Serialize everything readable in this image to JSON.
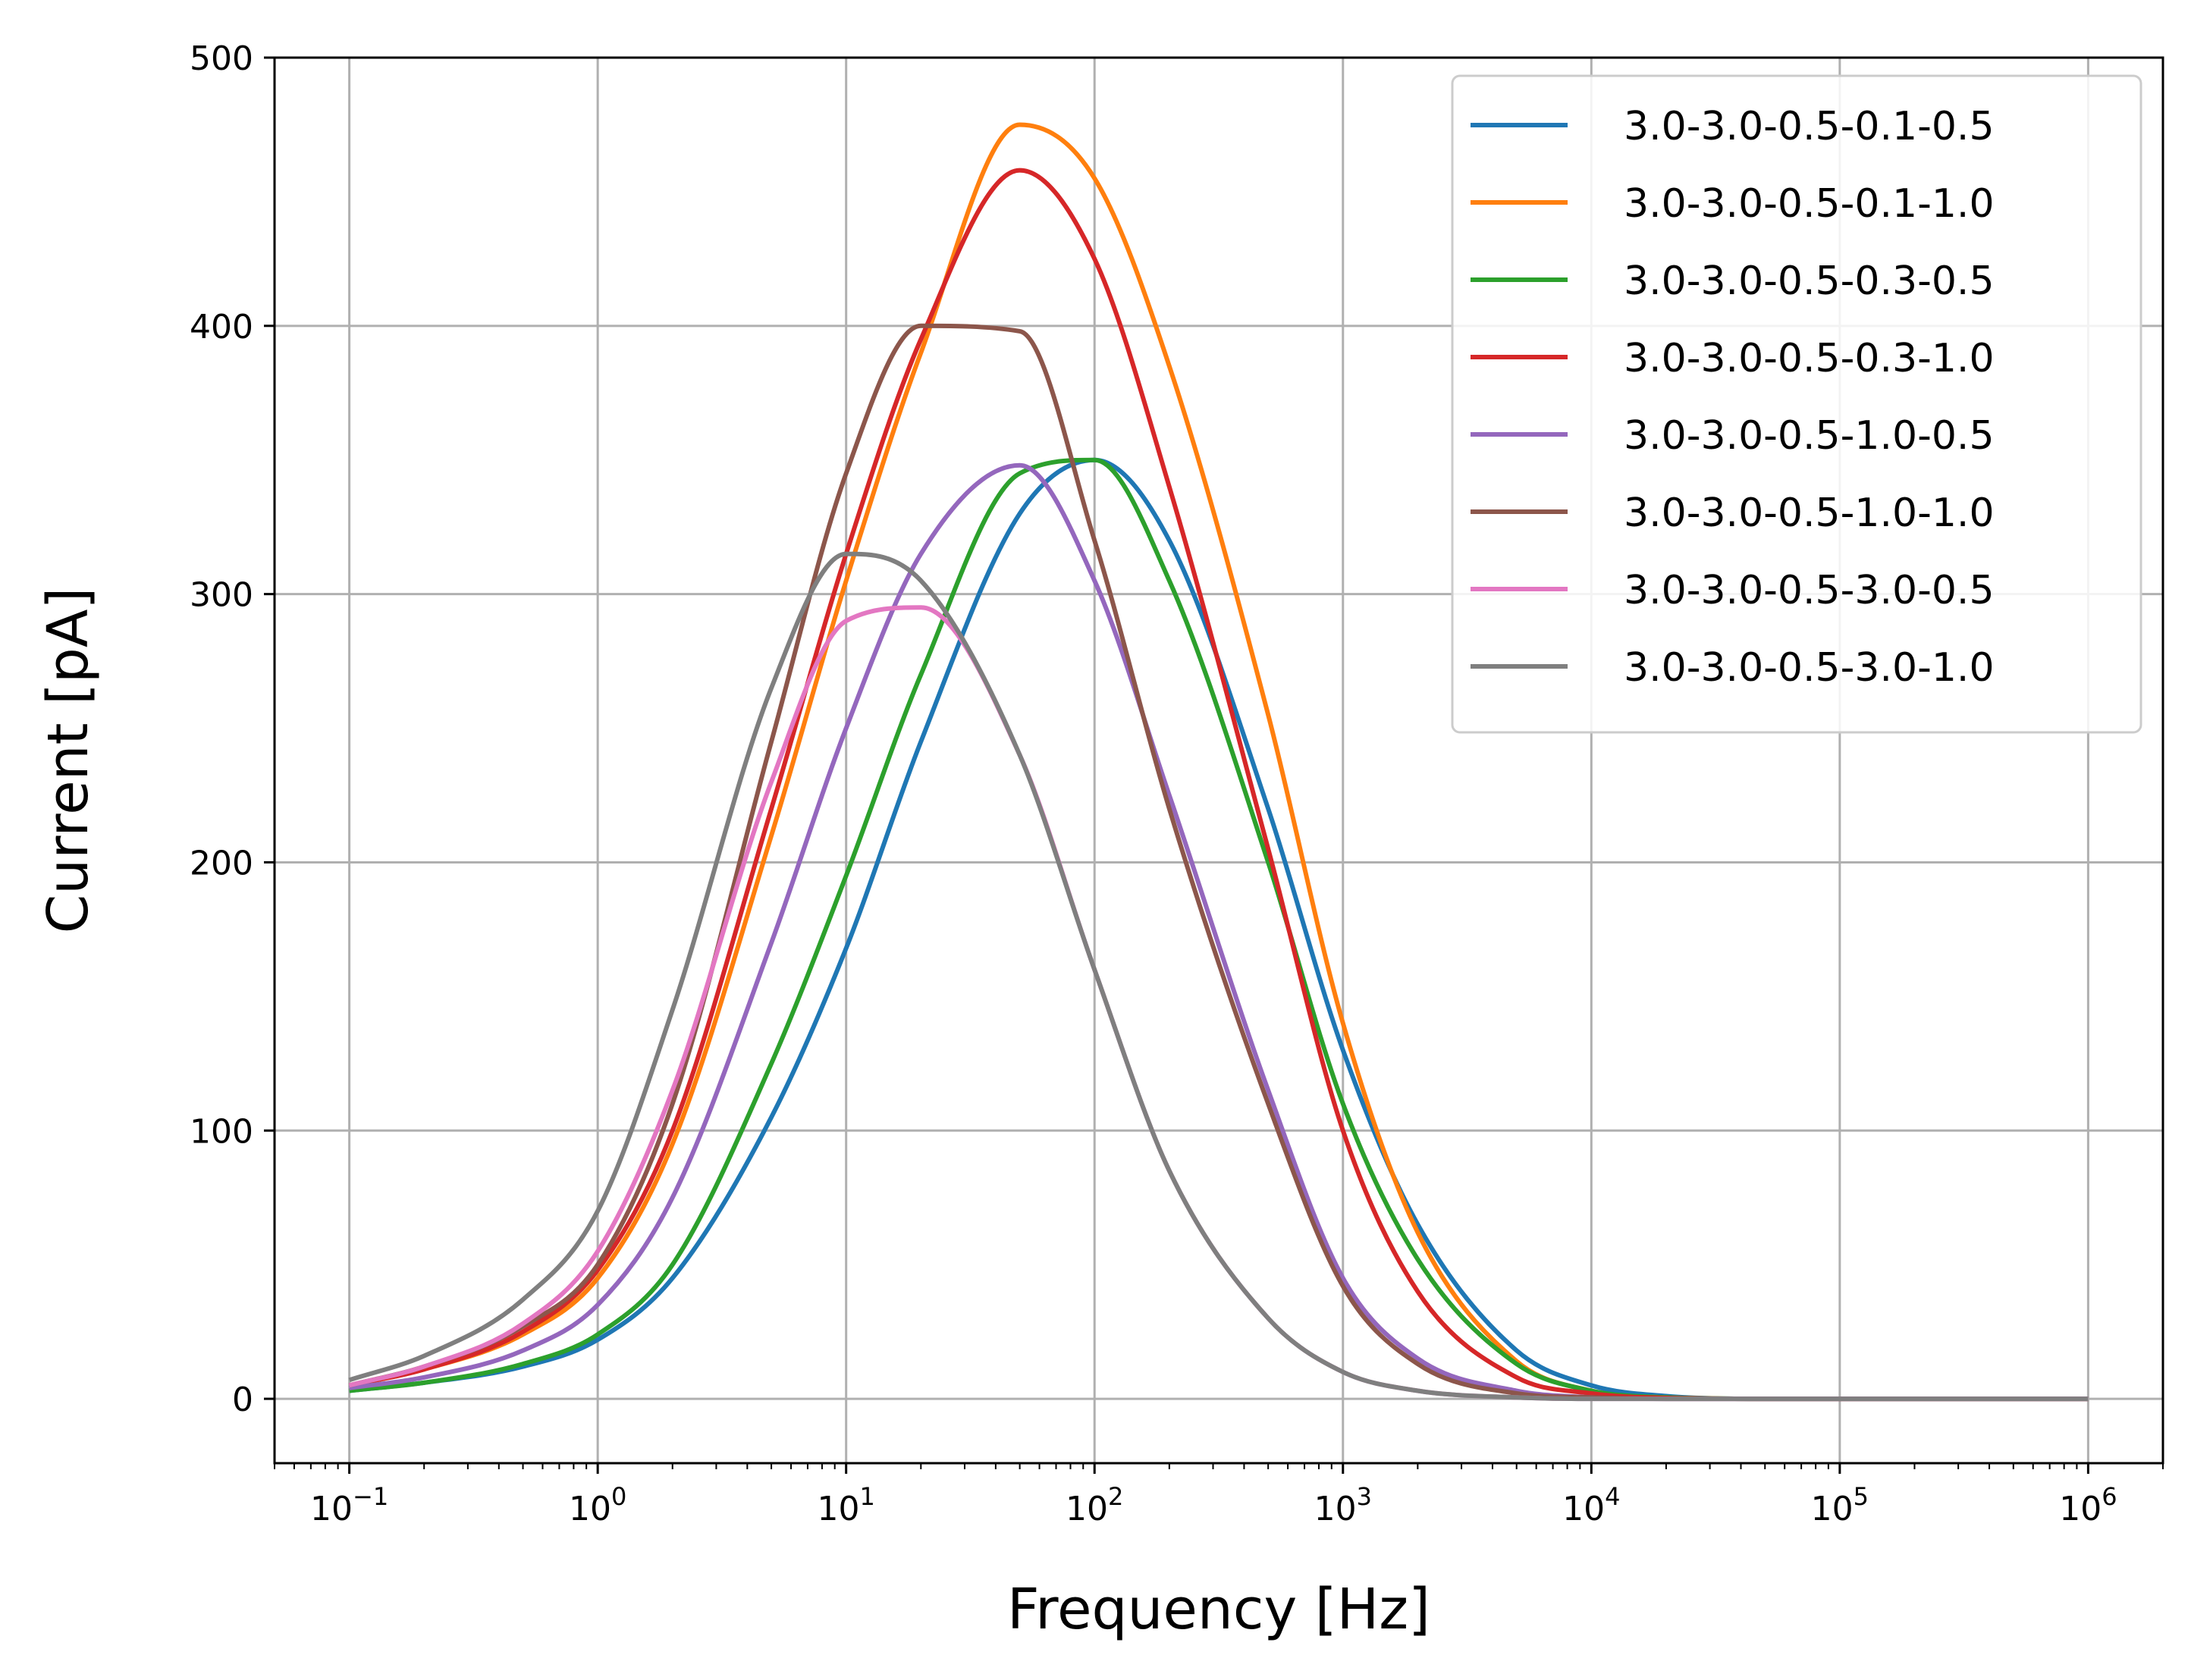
{
  "chart_data": {
    "type": "line",
    "xscale": "log",
    "xlabel": "Frequency [Hz]",
    "ylabel": "Current [pA]",
    "xlim": [
      0.05,
      2000000
    ],
    "ylim": [
      -24,
      500
    ],
    "grid": true,
    "legend_position": "top-right",
    "x_ticks": [
      {
        "value": 0.1,
        "base": "10",
        "exp": "−1"
      },
      {
        "value": 1,
        "base": "10",
        "exp": "0"
      },
      {
        "value": 10,
        "base": "10",
        "exp": "1"
      },
      {
        "value": 100,
        "base": "10",
        "exp": "2"
      },
      {
        "value": 1000,
        "base": "10",
        "exp": "3"
      },
      {
        "value": 10000,
        "base": "10",
        "exp": "4"
      },
      {
        "value": 100000,
        "base": "10",
        "exp": "5"
      },
      {
        "value": 1000000,
        "base": "10",
        "exp": "6"
      }
    ],
    "y_ticks": [
      {
        "value": 0,
        "label": "0"
      },
      {
        "value": 100,
        "label": "100"
      },
      {
        "value": 200,
        "label": "200"
      },
      {
        "value": 300,
        "label": "300"
      },
      {
        "value": 400,
        "label": "400"
      },
      {
        "value": 500,
        "label": "500"
      }
    ],
    "x": [
      0.1,
      0.2,
      0.5,
      1,
      2,
      5,
      10,
      20,
      50,
      100,
      200,
      500,
      1000,
      2000,
      5000,
      10000,
      20000,
      50000,
      100000,
      1000000
    ],
    "series": [
      {
        "name": "3.0-3.0-0.5-0.1-0.5",
        "color": "#1f77b4",
        "values": [
          3,
          6,
          12,
          22,
          45,
          105,
          168,
          245,
          330,
          350,
          320,
          220,
          130,
          65,
          18,
          5,
          1,
          0,
          0,
          0
        ]
      },
      {
        "name": "3.0-3.0-0.5-0.1-1.0",
        "color": "#ff7f0e",
        "values": [
          5,
          11,
          24,
          45,
          95,
          210,
          305,
          390,
          475,
          455,
          385,
          255,
          140,
          62,
          14,
          3,
          0.5,
          0,
          0,
          0
        ]
      },
      {
        "name": "3.0-3.0-0.5-0.3-0.5",
        "color": "#2ca02c",
        "values": [
          3,
          6,
          13,
          24,
          50,
          125,
          195,
          270,
          345,
          350,
          305,
          200,
          110,
          52,
          13,
          3,
          0.5,
          0,
          0,
          0
        ]
      },
      {
        "name": "3.0-3.0-0.5-0.3-1.0",
        "color": "#d62728",
        "values": [
          5,
          11,
          25,
          48,
          100,
          220,
          315,
          395,
          458,
          425,
          340,
          205,
          100,
          40,
          8,
          2,
          0.3,
          0,
          0,
          0
        ]
      },
      {
        "name": "3.0-3.0-0.5-1.0-0.5",
        "color": "#9467bd",
        "values": [
          4,
          8,
          18,
          35,
          75,
          170,
          250,
          315,
          348,
          305,
          225,
          115,
          45,
          15,
          3,
          0.5,
          0,
          0,
          0,
          0
        ]
      },
      {
        "name": "3.0-3.0-0.5-1.0-1.0",
        "color": "#8c564b",
        "values": [
          5,
          12,
          27,
          50,
          110,
          245,
          345,
          400,
          398,
          320,
          220,
          110,
          42,
          13,
          2,
          0.5,
          0,
          0,
          0,
          0
        ]
      },
      {
        "name": "3.0-3.0-0.5-3.0-0.5",
        "color": "#e377c2",
        "values": [
          5,
          12,
          28,
          55,
          115,
          230,
          290,
          295,
          240,
          160,
          85,
          30,
          10,
          3,
          0.5,
          0,
          0,
          0,
          0,
          0
        ]
      },
      {
        "name": "3.0-3.0-0.5-3.0-1.0",
        "color": "#7f7f7f",
        "values": [
          7,
          16,
          37,
          70,
          145,
          265,
          315,
          305,
          240,
          160,
          85,
          30,
          10,
          3,
          0.5,
          0,
          0,
          0,
          0,
          0
        ]
      }
    ]
  }
}
